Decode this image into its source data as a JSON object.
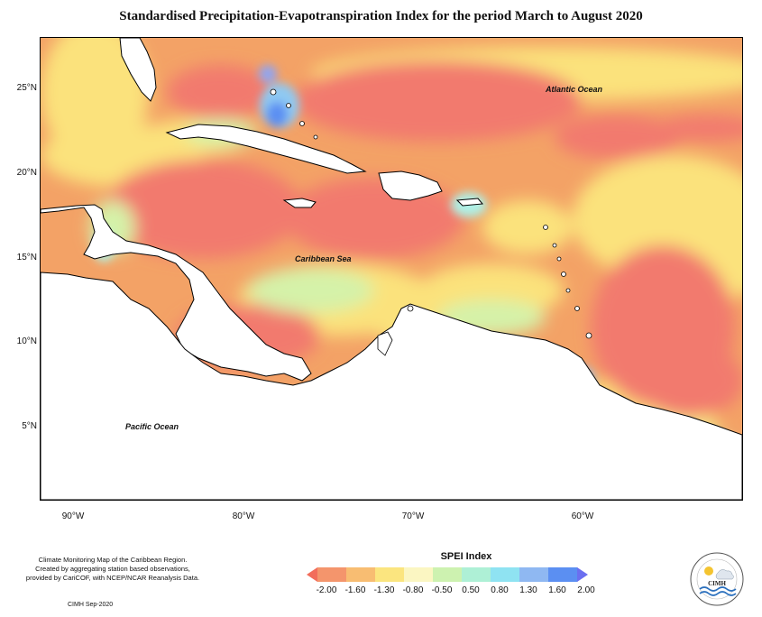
{
  "title": "Standardised Precipitation-Evapotranspiration Index for the period March to August 2020",
  "labels": {
    "atlantic": "Atlantic Ocean",
    "caribbean": "Caribbean Sea",
    "pacific": "Pacific Ocean"
  },
  "lat_ticks": [
    "25°N",
    "20°N",
    "15°N",
    "10°N",
    "5°N"
  ],
  "lon_ticks": [
    "90°W",
    "80°W",
    "70°W",
    "60°W"
  ],
  "legend": {
    "title": "SPEI Index",
    "values": [
      "-2.00",
      "-1.60",
      "-1.30",
      "-0.80",
      "-0.50",
      "0.50",
      "0.80",
      "1.30",
      "1.60",
      "2.00"
    ],
    "colors": [
      "#f26d5b",
      "#f4956c",
      "#f8bd72",
      "#fbe57f",
      "#fbf6c2",
      "#cdf2b0",
      "#aef0d6",
      "#8fe3f2",
      "#8fb8f2",
      "#5b8ff2",
      "#6b6ff0"
    ]
  },
  "footnote": {
    "line1": "Climate Monitoring Map of the Caribbean Region.",
    "line2": "Created by aggregating station based observations,",
    "line3": "provided by CariCOF, with NCEP/NCAR Reanalysis Data."
  },
  "credit": "CIMH Sep-2020",
  "logo": {
    "text": "CIMH"
  }
}
